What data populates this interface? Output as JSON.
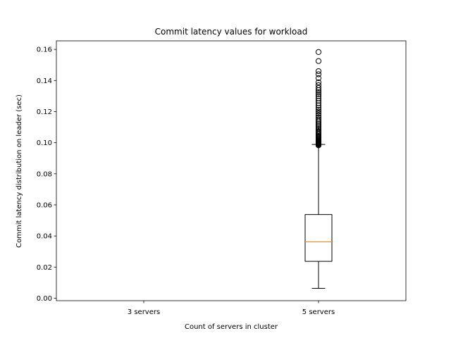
{
  "chart_data": {
    "type": "box",
    "title": "Commit latency values for workload",
    "xlabel": "Count of servers in cluster",
    "ylabel": "Commit latency distribution on leader (sec)",
    "categories": [
      "3 servers",
      "5 servers"
    ],
    "ylim": [
      -0.0016,
      0.1655
    ],
    "yticks": [
      0.0,
      0.02,
      0.04,
      0.06,
      0.08,
      0.1,
      0.12,
      0.14,
      0.16
    ],
    "ytick_labels": [
      "0.00",
      "0.02",
      "0.04",
      "0.06",
      "0.08",
      "0.10",
      "0.12",
      "0.14",
      "0.16"
    ],
    "grid": false,
    "colors": {
      "box": "#000000",
      "median": "#ff7f0e",
      "flier": "#000000"
    },
    "boxes": [
      {
        "category": "3 servers",
        "empty": true
      },
      {
        "category": "5 servers",
        "whisker_low": 0.0063,
        "q1": 0.0237,
        "median": 0.0362,
        "q3": 0.0538,
        "whisker_high": 0.0989,
        "fliers": [
          0.0983,
          0.0986,
          0.0991,
          0.0994,
          0.0998,
          0.1002,
          0.1006,
          0.101,
          0.1015,
          0.102,
          0.1025,
          0.1031,
          0.1037,
          0.1043,
          0.105,
          0.1057,
          0.1065,
          0.1073,
          0.1082,
          0.1091,
          0.11,
          0.111,
          0.112,
          0.113,
          0.114,
          0.115,
          0.1162,
          0.1175,
          0.1188,
          0.12,
          0.1212,
          0.1225,
          0.124,
          0.1255,
          0.127,
          0.1285,
          0.13,
          0.1313,
          0.1325,
          0.1338,
          0.1352,
          0.137,
          0.1388,
          0.1415,
          0.144,
          0.146,
          0.1525,
          0.1583
        ]
      }
    ]
  }
}
